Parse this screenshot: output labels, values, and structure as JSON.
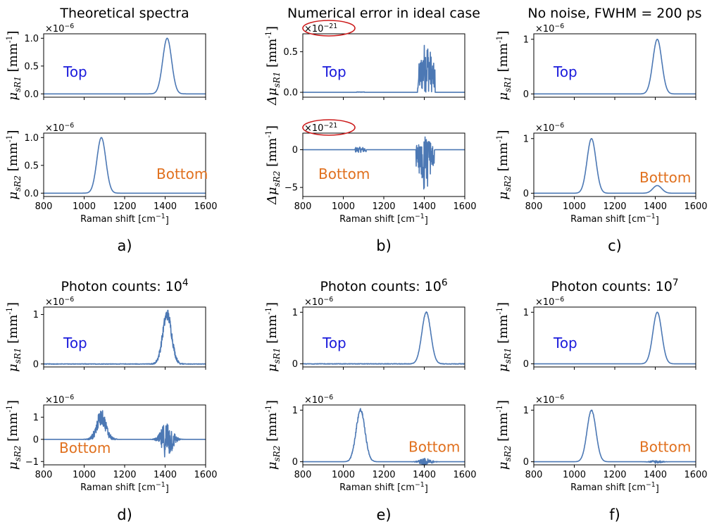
{
  "colors": {
    "line": "#4C78B4",
    "top": "#1a1adb",
    "bottom": "#e0701e",
    "highlight": "#cc1b1b"
  },
  "chart_data": [
    {
      "panel": "a)",
      "title": "Theoretical spectra",
      "type": "line",
      "subplots": [
        {
          "ylabel": "μ_sR1 [mm^-1]",
          "yticks": [
            0.0,
            0.5,
            1.0
          ],
          "ytick_labels": [
            "0.0",
            "0.5",
            "1.0"
          ],
          "ylim": [
            -0.06,
            1.08
          ],
          "sci": "×10^-6",
          "annotation": "Top",
          "xlim": [
            800,
            1600
          ],
          "xticks": [],
          "xtick_labels": [],
          "series": [
            {
              "peaks": [
                {
                  "x": 1410,
                  "height": 1.0,
                  "width": 22
                }
              ],
              "noise": null
            }
          ]
        },
        {
          "ylabel": "μ_sR2 [mm^-1]",
          "yticks": [
            0.0,
            0.5,
            1.0
          ],
          "ytick_labels": [
            "0.0",
            "0.5",
            "1.0"
          ],
          "ylim": [
            -0.06,
            1.08
          ],
          "sci": "×10^-6",
          "annotation": "Bottom",
          "xlim": [
            800,
            1600
          ],
          "xticks": [
            800,
            1000,
            1200,
            1400,
            1600
          ],
          "xtick_labels": [
            "800",
            "1000",
            "1200",
            "1400",
            "1600"
          ],
          "xlabel": "Raman shift [cm^-1]",
          "series": [
            {
              "peaks": [
                {
                  "x": 1085,
                  "height": 1.0,
                  "width": 22
                }
              ],
              "noise": null
            }
          ]
        }
      ]
    },
    {
      "panel": "b)",
      "title": "Numerical error in ideal case",
      "type": "line",
      "subplots": [
        {
          "ylabel": "Δμ_sR1 [mm^-1]",
          "yticks": [
            0.0,
            0.5
          ],
          "ytick_labels": [
            "0.0",
            "0.5"
          ],
          "ylim": [
            -0.06,
            0.72
          ],
          "sci": "×10^-21",
          "sci_circled": true,
          "annotation": "Top",
          "xlim": [
            800,
            1600
          ],
          "xticks": [],
          "xtick_labels": [],
          "series": [
            {
              "peaks": [],
              "noise": {
                "center": 1410,
                "width": 22,
                "amp": 0.65,
                "type": "positive"
              }
            }
          ]
        },
        {
          "ylabel": "Δμ_sR2 [mm^-1]",
          "yticks": [
            -5,
            0
          ],
          "ytick_labels": [
            "−5",
            "0"
          ],
          "ylim": [
            -6.2,
            2.2
          ],
          "sci": "×10^-21",
          "sci_circled": true,
          "annotation": "Bottom",
          "xlim": [
            800,
            1600
          ],
          "xticks": [
            800,
            1000,
            1200,
            1400,
            1600
          ],
          "xtick_labels": [
            "800",
            "1000",
            "1200",
            "1400",
            "1600"
          ],
          "xlabel": "Raman shift [cm^-1]",
          "series": [
            {
              "peaks": [],
              "noise": {
                "center": 1405,
                "width": 22,
                "amp": 5.8,
                "type": "negative",
                "small": {
                  "center": 1085,
                  "amp": 0.35
                }
              }
            }
          ]
        }
      ]
    },
    {
      "panel": "c)",
      "title": "No noise, FWHM = 200 ps",
      "type": "line",
      "subplots": [
        {
          "ylabel": "μ_sR1 [mm^-1]",
          "yticks": [
            0,
            1
          ],
          "ytick_labels": [
            "0",
            "1"
          ],
          "ylim": [
            -0.06,
            1.1
          ],
          "sci": "×10^-6",
          "annotation": "Top",
          "xlim": [
            800,
            1600
          ],
          "xticks": [],
          "xtick_labels": [],
          "series": [
            {
              "peaks": [
                {
                  "x": 1410,
                  "height": 1.0,
                  "width": 22
                }
              ],
              "noise": null
            }
          ]
        },
        {
          "ylabel": "μ_sR2 [mm^-1]",
          "yticks": [
            0,
            1
          ],
          "ytick_labels": [
            "0",
            "1"
          ],
          "ylim": [
            -0.06,
            1.1
          ],
          "sci": "×10^-6",
          "annotation": "Bottom",
          "xlim": [
            800,
            1600
          ],
          "xticks": [
            800,
            1000,
            1200,
            1400,
            1600
          ],
          "xtick_labels": [
            "800",
            "1000",
            "1200",
            "1400",
            "1600"
          ],
          "xlabel": "Raman shift [cm^-1]",
          "series": [
            {
              "peaks": [
                {
                  "x": 1085,
                  "height": 1.0,
                  "width": 22
                },
                {
                  "x": 1410,
                  "height": 0.14,
                  "width": 22
                }
              ],
              "noise": null
            }
          ]
        }
      ]
    },
    {
      "panel": "d)",
      "title": "Photon counts: 10^4",
      "type": "line",
      "subplots": [
        {
          "ylabel": "μ_sR1 [mm^-1]",
          "yticks": [
            0,
            1
          ],
          "ytick_labels": [
            "0",
            "1"
          ],
          "ylim": [
            -0.06,
            1.15
          ],
          "sci": "×10^-6",
          "annotation": "Top",
          "xlim": [
            800,
            1600
          ],
          "xticks": [],
          "xtick_labels": [],
          "series": [
            {
              "peaks": [
                {
                  "x": 1410,
                  "height": 1.0,
                  "width": 22
                }
              ],
              "noise": {
                "amp": 0.12,
                "scale": true
              }
            }
          ]
        },
        {
          "ylabel": "μ_sR2 [mm^-1]",
          "yticks": [
            -1,
            0,
            1
          ],
          "ytick_labels": [
            "−1",
            "0",
            "1"
          ],
          "ylim": [
            -1.15,
            1.55
          ],
          "sci": "×10^-6",
          "annotation": "Bottom",
          "xlim": [
            800,
            1600
          ],
          "xticks": [
            800,
            1000,
            1200,
            1400,
            1600
          ],
          "xtick_labels": [
            "800",
            "1000",
            "1200",
            "1400",
            "1600"
          ],
          "xlabel": "Raman shift [cm^-1]",
          "series": [
            {
              "peaks": [
                {
                  "x": 1085,
                  "height": 1.0,
                  "width": 22
                }
              ],
              "noise": {
                "amp": 0.35,
                "scale": true,
                "extra": {
                  "center": 1410,
                  "amp": 0.9,
                  "width": 25
                }
              }
            }
          ]
        }
      ]
    },
    {
      "panel": "e)",
      "title": "Photon counts: 10^6",
      "type": "line",
      "subplots": [
        {
          "ylabel": "μ_sR1 [mm^-1]",
          "yticks": [
            0,
            1
          ],
          "ytick_labels": [
            "0",
            "1"
          ],
          "ylim": [
            -0.06,
            1.1
          ],
          "sci": "×10^-6",
          "annotation": "Top",
          "xlim": [
            800,
            1600
          ],
          "xticks": [],
          "xtick_labels": [],
          "series": [
            {
              "peaks": [
                {
                  "x": 1410,
                  "height": 1.0,
                  "width": 22
                }
              ],
              "noise": {
                "amp": 0.01,
                "scale": true
              }
            }
          ]
        },
        {
          "ylabel": "μ_sR2 [mm^-1]",
          "yticks": [
            0,
            1
          ],
          "ytick_labels": [
            "0",
            "1"
          ],
          "ylim": [
            -0.06,
            1.1
          ],
          "sci": "×10^-6",
          "annotation": "Bottom",
          "xlim": [
            800,
            1600
          ],
          "xticks": [
            800,
            1000,
            1200,
            1400,
            1600
          ],
          "xtick_labels": [
            "800",
            "1000",
            "1200",
            "1400",
            "1600"
          ],
          "xlabel": "Raman shift [cm^-1]",
          "series": [
            {
              "peaks": [
                {
                  "x": 1085,
                  "height": 1.0,
                  "width": 22
                }
              ],
              "noise": {
                "amp": 0.04,
                "scale": true,
                "extra": {
                  "center": 1405,
                  "amp": 0.07,
                  "width": 25
                }
              }
            }
          ]
        }
      ]
    },
    {
      "panel": "f)",
      "title": "Photon counts: 10^7",
      "type": "line",
      "subplots": [
        {
          "ylabel": "μ_sR1 [mm^-1]",
          "yticks": [
            0,
            1
          ],
          "ytick_labels": [
            "0",
            "1"
          ],
          "ylim": [
            -0.06,
            1.1
          ],
          "sci": "×10^-6",
          "annotation": "Top",
          "xlim": [
            800,
            1600
          ],
          "xticks": [],
          "xtick_labels": [],
          "series": [
            {
              "peaks": [
                {
                  "x": 1410,
                  "height": 1.0,
                  "width": 22
                }
              ],
              "noise": null
            }
          ]
        },
        {
          "ylabel": "μ_sR2 [mm^-1]",
          "yticks": [
            0,
            1
          ],
          "ytick_labels": [
            "0",
            "1"
          ],
          "ylim": [
            -0.06,
            1.1
          ],
          "sci": "×10^-6",
          "annotation": "Bottom",
          "xlim": [
            800,
            1600
          ],
          "xticks": [
            800,
            1000,
            1200,
            1400,
            1600
          ],
          "xtick_labels": [
            "800",
            "1000",
            "1200",
            "1400",
            "1600"
          ],
          "xlabel": "Raman shift [cm^-1]",
          "series": [
            {
              "peaks": [
                {
                  "x": 1085,
                  "height": 1.0,
                  "width": 22
                }
              ],
              "noise": {
                "amp": 0.01,
                "scale": true,
                "extra": {
                  "center": 1405,
                  "amp": 0.03,
                  "width": 25
                }
              }
            }
          ]
        }
      ]
    }
  ]
}
